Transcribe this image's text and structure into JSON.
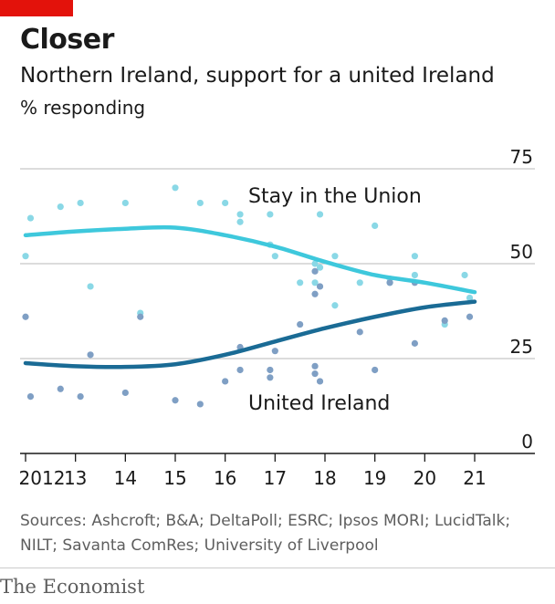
{
  "header": {
    "title": "Closer",
    "subtitle": "Northern Ireland, support for a united Ireland",
    "unit": "% responding"
  },
  "footer": {
    "sources": "Sources: Ashcroft; B&A; DeltaPoll; ESRC; Ipsos MORI; LucidTalk; NILT; Savanta ComRes; University of Liverpool",
    "brand": "The Economist"
  },
  "colors": {
    "accent": "#e3120b",
    "stay": "#3ec8dc",
    "stay_points": "#8ad8e6",
    "united": "#1a6b95",
    "united_points": "#7f9fc4",
    "grid": "#c8c8c8",
    "axis": "#1a1a1a"
  },
  "chart_data": {
    "type": "scatter",
    "y_range": [
      0,
      75
    ],
    "y_ticks": [
      "75",
      "50",
      "25",
      "0"
    ],
    "x_range": [
      2012,
      2021.6
    ],
    "x_ticks": [
      {
        "x": 2012,
        "label": "2012"
      },
      {
        "x": 2013,
        "label": "13"
      },
      {
        "x": 2014,
        "label": "14"
      },
      {
        "x": 2015,
        "label": "15"
      },
      {
        "x": 2016,
        "label": "16"
      },
      {
        "x": 2017,
        "label": "17"
      },
      {
        "x": 2018,
        "label": "18"
      },
      {
        "x": 2019,
        "label": "19"
      },
      {
        "x": 2020,
        "label": "20"
      },
      {
        "x": 2021,
        "label": "21"
      }
    ],
    "grid": true,
    "series": [
      {
        "name": "Stay in the Union",
        "trend": [
          [
            2012,
            57.5
          ],
          [
            2013,
            58.5
          ],
          [
            2014,
            59.2
          ],
          [
            2015,
            59.5
          ],
          [
            2016,
            57.5
          ],
          [
            2017,
            54.5
          ],
          [
            2018,
            50.5
          ],
          [
            2019,
            47
          ],
          [
            2020,
            45
          ],
          [
            2021,
            42.5
          ]
        ],
        "points": [
          [
            2012.0,
            52
          ],
          [
            2012.1,
            62
          ],
          [
            2012.7,
            65
          ],
          [
            2013.1,
            66
          ],
          [
            2013.3,
            44
          ],
          [
            2014.0,
            66
          ],
          [
            2014.3,
            37
          ],
          [
            2015.0,
            70
          ],
          [
            2015.5,
            66
          ],
          [
            2016.0,
            66
          ],
          [
            2016.3,
            61
          ],
          [
            2016.3,
            63
          ],
          [
            2016.9,
            63
          ],
          [
            2016.9,
            55
          ],
          [
            2017.0,
            52
          ],
          [
            2017.5,
            45
          ],
          [
            2017.8,
            45
          ],
          [
            2017.8,
            50
          ],
          [
            2017.9,
            49
          ],
          [
            2017.9,
            63
          ],
          [
            2018.2,
            39
          ],
          [
            2018.2,
            52
          ],
          [
            2018.7,
            45
          ],
          [
            2019.0,
            60
          ],
          [
            2019.3,
            45
          ],
          [
            2019.3,
            46
          ],
          [
            2019.8,
            47
          ],
          [
            2019.8,
            52
          ],
          [
            2020.4,
            34
          ],
          [
            2020.8,
            47
          ],
          [
            2020.9,
            41
          ]
        ]
      },
      {
        "name": "United Ireland",
        "trend": [
          [
            2012,
            23.8
          ],
          [
            2013,
            23
          ],
          [
            2014,
            22.8
          ],
          [
            2015,
            23.5
          ],
          [
            2016,
            26
          ],
          [
            2017,
            29.5
          ],
          [
            2018,
            33
          ],
          [
            2019,
            36
          ],
          [
            2020,
            38.5
          ],
          [
            2021,
            40
          ]
        ],
        "points": [
          [
            2012.0,
            36
          ],
          [
            2012.1,
            15
          ],
          [
            2012.7,
            17
          ],
          [
            2013.1,
            15
          ],
          [
            2013.3,
            26
          ],
          [
            2014.0,
            16
          ],
          [
            2014.3,
            36
          ],
          [
            2015.0,
            14
          ],
          [
            2015.5,
            13
          ],
          [
            2016.0,
            19
          ],
          [
            2016.3,
            22
          ],
          [
            2016.3,
            28
          ],
          [
            2016.9,
            22
          ],
          [
            2016.9,
            20
          ],
          [
            2017.0,
            27
          ],
          [
            2017.5,
            34
          ],
          [
            2017.8,
            48
          ],
          [
            2017.8,
            42
          ],
          [
            2017.9,
            44
          ],
          [
            2017.8,
            23
          ],
          [
            2017.8,
            21
          ],
          [
            2017.9,
            19
          ],
          [
            2018.7,
            32
          ],
          [
            2019.0,
            22
          ],
          [
            2019.3,
            45
          ],
          [
            2019.8,
            29
          ],
          [
            2019.8,
            45
          ],
          [
            2020.4,
            35
          ],
          [
            2020.9,
            36
          ]
        ]
      }
    ]
  }
}
